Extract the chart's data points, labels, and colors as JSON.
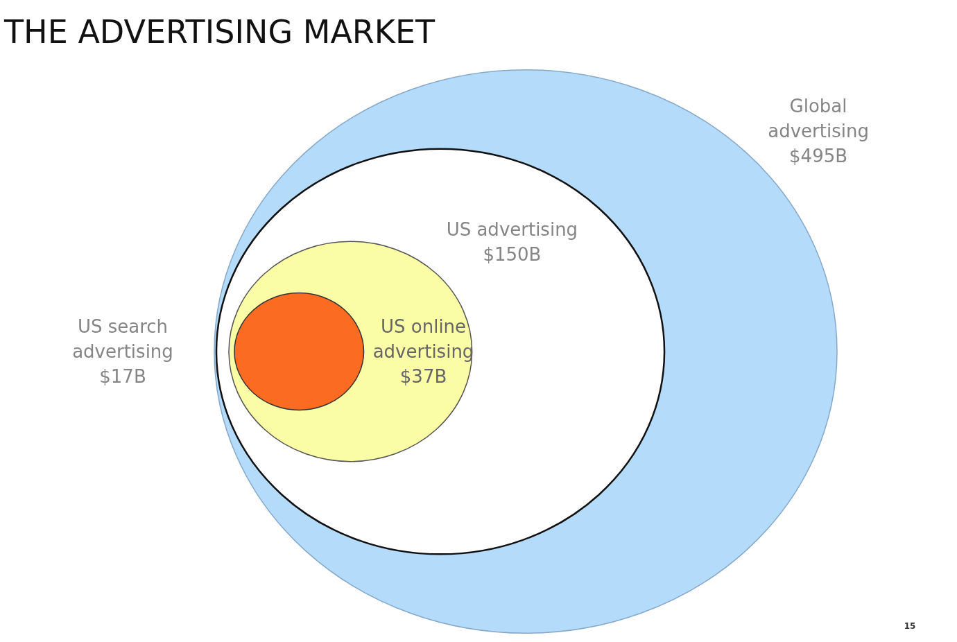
{
  "chart_data": {
    "type": "other",
    "title": "THE ADVERTISING MARKET",
    "categories": [
      "Global advertising",
      "US advertising",
      "US online advertising",
      "US search advertising"
    ],
    "values": [
      495,
      150,
      37,
      17
    ],
    "value_labels": [
      "$495B",
      "$150B",
      "$37B",
      "$17B"
    ],
    "colors": [
      "#b5dbfb",
      "#ffffff",
      "#fafca6",
      "#fb6c22"
    ],
    "annotations": [
      "15"
    ]
  }
}
